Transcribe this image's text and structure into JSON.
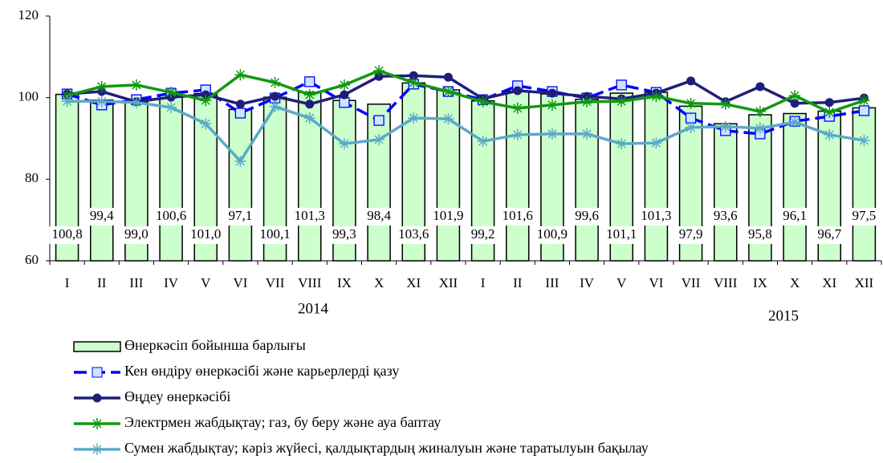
{
  "chart_data": {
    "type": "bar",
    "categories": [
      "I",
      "II",
      "III",
      "IV",
      "V",
      "VI",
      "VII",
      "VIII",
      "IX",
      "X",
      "XI",
      "XII",
      "I",
      "II",
      "III",
      "IV",
      "V",
      "VI",
      "VII",
      "VIII",
      "IX",
      "X",
      "XI",
      "XII"
    ],
    "year_labels": [
      "2014",
      "2015"
    ],
    "ylim": [
      60,
      120
    ],
    "yticks": [
      60,
      80,
      100,
      120
    ],
    "series": [
      {
        "name": "Өнеркәсіп бойынша барлығы",
        "type": "bar",
        "color": "#ccffcc",
        "values": [
          100.8,
          99.4,
          99.0,
          100.6,
          101.0,
          97.1,
          100.1,
          101.3,
          99.3,
          98.4,
          103.6,
          101.9,
          99.2,
          101.6,
          100.9,
          99.6,
          101.1,
          101.3,
          97.9,
          93.6,
          95.8,
          96.1,
          96.7,
          97.5
        ],
        "value_labels": [
          "100,8",
          "99,4",
          "99,0",
          "100,6",
          "101,0",
          "97,1",
          "100,1",
          "101,3",
          "99,3",
          "98,4",
          "103,6",
          "101,9",
          "99,2",
          "101,6",
          "100,9",
          "99,6",
          "101,1",
          "101,3",
          "97,9",
          "93,6",
          "95,8",
          "96,1",
          "96,7",
          "97,5"
        ]
      },
      {
        "name": "Кен өндіру өнеркәсібі және карьерлерді қазу",
        "type": "line",
        "marker": "square",
        "dashed": true,
        "color": "#0000ff",
        "values": [
          100.9,
          98.2,
          99.5,
          101.1,
          101.9,
          96.2,
          99.9,
          103.9,
          98.8,
          94.4,
          103.3,
          101.5,
          99.5,
          102.9,
          101.5,
          99.9,
          103.1,
          101.3,
          95.0,
          91.9,
          91.1,
          94.2,
          95.4,
          96.8
        ]
      },
      {
        "name": "Өңдеу өнеркәсібі",
        "type": "line",
        "marker": "circle",
        "color": "#1f1f7a",
        "values": [
          100.9,
          101.5,
          99.0,
          100.1,
          100.7,
          98.4,
          100.3,
          98.4,
          100.7,
          105.2,
          105.4,
          105.0,
          99.7,
          101.7,
          101.1,
          100.3,
          99.7,
          101.1,
          104.1,
          99.0,
          102.7,
          98.6,
          98.8,
          99.9
        ]
      },
      {
        "name": "Электрмен жабдықтау; газ, бу беру және ауа баптау",
        "type": "line",
        "marker": "star",
        "color": "#119911",
        "values": [
          100.5,
          102.7,
          103.1,
          101.3,
          99.3,
          105.6,
          103.7,
          100.7,
          103.1,
          106.6,
          103.7,
          101.5,
          99.0,
          97.4,
          98.2,
          99.0,
          99.1,
          100.3,
          98.6,
          98.4,
          96.6,
          100.5,
          96.4,
          99.3
        ]
      },
      {
        "name": "Сумен жабдықтау; кәріз жүйесі, қалдықтардың жиналуын және таратылуын бақылау",
        "type": "line",
        "marker": "star",
        "color": "#5aaac8",
        "values": [
          99.1,
          99.1,
          98.8,
          97.6,
          93.6,
          84.4,
          97.8,
          95.0,
          88.7,
          89.7,
          95.0,
          94.8,
          89.3,
          90.9,
          91.1,
          91.1,
          88.7,
          88.9,
          92.7,
          92.9,
          92.5,
          94.0,
          90.9,
          89.5
        ]
      }
    ]
  }
}
